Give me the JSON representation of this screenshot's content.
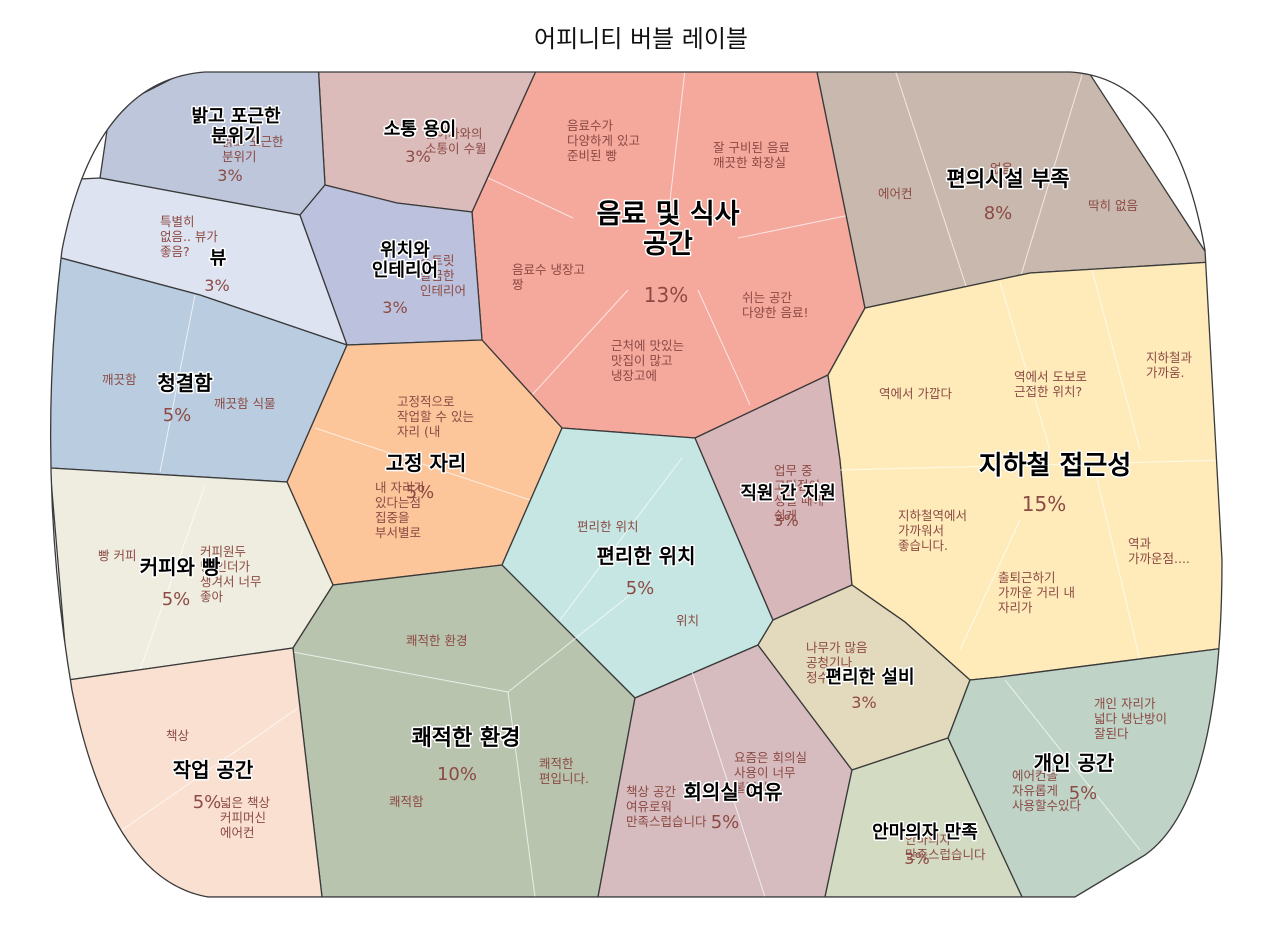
{
  "chart_data": {
    "type": "voronoi-treemap",
    "title": "어피니티 버블 레이블",
    "colors": {
      "음료 및 식사 공간": "#f5a89c",
      "편의시설 부족": "#c9b8ad",
      "소통 용이": "#dcbcba",
      "밝고 포근한 분위기": "#bdc6da",
      "뷰": "#dee3f1",
      "위치와 인테리어": "#bcc2dd",
      "청결함": "#b9cce0",
      "고정 자리": "#fcc59a",
      "편리한 위치": "#c5e6e2",
      "직원 간 지원": "#d8b7bb",
      "지하철 접근성": "#feebb9",
      "커피와 빵": "#efede0",
      "쾌적한 환경": "#b8c4ae",
      "작업 공간": "#fae0d1",
      "회의실 여유": "#d6bbbf",
      "편리한 설비": "#e3d9bc",
      "개인 공간": "#bfd3c7",
      "안마의자 만족": "#d3dcc3"
    },
    "cells": [
      {
        "label": "음료 및 식사\n공간",
        "percent": "13%",
        "value": 13,
        "items": [
          "음료수가\n다양하게 있고\n준비된 빵",
          "잘 구비된 음료\n깨끗한 화장실",
          "음료수 냉장고\n짱",
          "쉬는 공간\n다양한 음료!",
          "근처에 맛있는\n맛집이 많고\n냉장고에"
        ]
      },
      {
        "label": "편의시설 부족",
        "percent": "8%",
        "value": 8,
        "items": [
          "에어컨",
          "없음",
          "딱히 없음"
        ]
      },
      {
        "label": "소통 용이",
        "percent": "3%",
        "value": 3,
        "items": [
          "참여자와의\n소통이 수월"
        ]
      },
      {
        "label": "밝고 포근한\n분위기",
        "percent": "3%",
        "value": 3,
        "items": [
          "밝고 포근한\n분위기"
        ]
      },
      {
        "label": "뷰",
        "percent": "3%",
        "value": 3,
        "items": [
          "특별히\n없음.. 뷰가\n좋음?"
        ]
      },
      {
        "label": "위치와\n인테리어",
        "percent": "3%",
        "value": 3,
        "items": [
          "스트릿\n깔끔한\n인테리어"
        ]
      },
      {
        "label": "청결함",
        "percent": "5%",
        "value": 5,
        "items": [
          "깨끗함",
          "깨끗함 식물"
        ]
      },
      {
        "label": "고정 자리",
        "percent": "5%",
        "value": 5,
        "items": [
          "고정적으로\n작업할 수 있는\n자리 (내",
          "내 자리가\n있다는점\n집중을\n부서별로"
        ]
      },
      {
        "label": "편리한 위치",
        "percent": "5%",
        "value": 5,
        "items": [
          "편리한 위치",
          "위치"
        ]
      },
      {
        "label": "직원 간 지원",
        "percent": "3%",
        "value": 3,
        "items": [
          "업무 중\n고민점이\n생길 때에\n쉽게"
        ]
      },
      {
        "label": "지하철 접근성",
        "percent": "15%",
        "value": 15,
        "items": [
          "역에서 가깝다",
          "역에서 도보로\n근접한 위치?",
          "지하철과\n가까움.",
          "지하철역에서\n가까워서\n좋습니다.",
          "역과\n가까운점....",
          "출퇴근하기\n가까운 거리 내\n자리가"
        ]
      },
      {
        "label": "커피와 빵",
        "percent": "5%",
        "value": 5,
        "items": [
          "빵 커피",
          "커피원두\n빵 인더가\n생겨서 너무\n좋아"
        ]
      },
      {
        "label": "쾌적한 환경",
        "percent": "10%",
        "value": 10,
        "items": [
          "쾌적한 환경",
          "쾌적함",
          "쾌적한\n편입니다."
        ]
      },
      {
        "label": "작업 공간",
        "percent": "5%",
        "value": 5,
        "items": [
          "책상",
          "넓은 책상\n커피머신\n에어컨"
        ]
      },
      {
        "label": "회의실 여유",
        "percent": "5%",
        "value": 5,
        "items": [
          "요즘은 회의실\n사용이 너무\n불편하고",
          "책상 공간\n여유로워\n만족스럽습니다"
        ]
      },
      {
        "label": "편리한 설비",
        "percent": "3%",
        "value": 3,
        "items": [
          "나무가 많음\n공청기나\n정수기"
        ]
      },
      {
        "label": "개인 공간",
        "percent": "5%",
        "value": 5,
        "items": [
          "개인 자리가\n넓다 냉난방이\n잘된다",
          "에어컨을\n자유롭게\n사용할수있다"
        ]
      },
      {
        "label": "안마의자 만족",
        "percent": "3%",
        "value": 3,
        "items": [
          "안마의자\n만족스럽습니다"
        ]
      }
    ]
  }
}
